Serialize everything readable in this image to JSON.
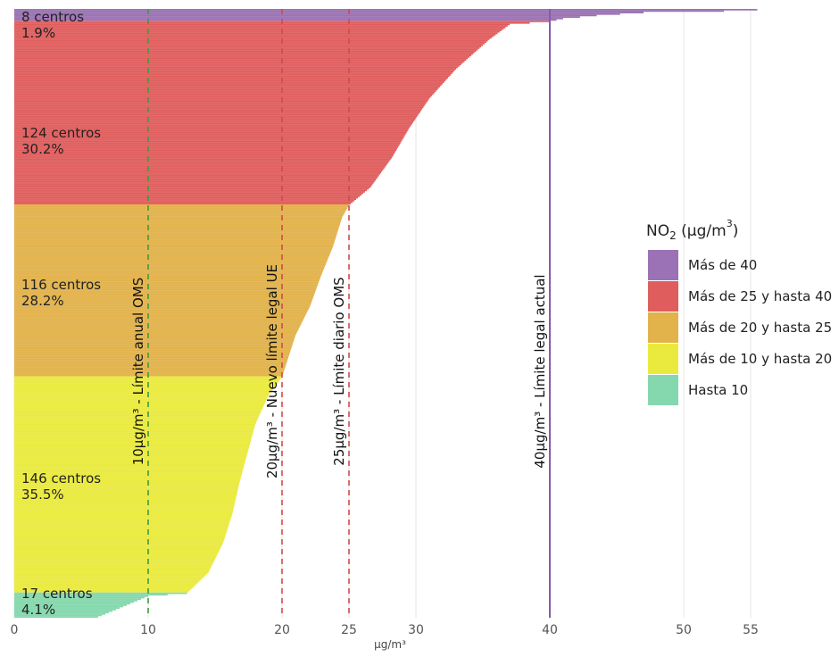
{
  "chart_data": {
    "type": "bar",
    "orientation": "horizontal",
    "title": "",
    "xlabel": "µg/m³",
    "ylabel": "",
    "xlim": [
      0,
      56
    ],
    "x_ticks": [
      0,
      10,
      20,
      25,
      30,
      40,
      50,
      55
    ],
    "grid": true,
    "legend_position": "right",
    "legend": {
      "title_prefix": "NO",
      "title_sub": "2",
      "title_suffix": " (µg/m",
      "title_sup": "3",
      "title_close": ")"
    },
    "categories": [
      {
        "legend": "Más de 40",
        "count_label": "8 centros",
        "pct_label": "1.9%",
        "n": 8,
        "color": "#9b72b5"
      },
      {
        "legend": "Más de 25 y hasta 40",
        "count_label": "124 centros",
        "pct_label": "30.2%",
        "n": 124,
        "color": "#e05d5d"
      },
      {
        "legend": "Más de 20 y hasta 25",
        "count_label": "116 centros",
        "pct_label": "28.2%",
        "n": 116,
        "color": "#e2b24b"
      },
      {
        "legend": "Más de 10 y hasta 20",
        "count_label": "146 centros",
        "pct_label": "35.5%",
        "n": 146,
        "color": "#eaea3e"
      },
      {
        "legend": "Hasta 10",
        "count_label": "17 centros",
        "pct_label": "4.1%",
        "n": 17,
        "color": "#85d8ad"
      }
    ],
    "distribution_profile": [
      [
        0,
        55.5
      ],
      [
        1,
        53.0
      ],
      [
        2,
        47.0
      ],
      [
        4,
        43.5
      ],
      [
        6,
        41.0
      ],
      [
        8,
        40.0
      ],
      [
        10,
        37.0
      ],
      [
        20,
        35.5
      ],
      [
        40,
        33.0
      ],
      [
        60,
        31.0
      ],
      [
        80,
        29.5
      ],
      [
        100,
        28.2
      ],
      [
        120,
        26.6
      ],
      [
        132,
        25.0
      ],
      [
        140,
        24.5
      ],
      [
        160,
        23.8
      ],
      [
        180,
        22.9
      ],
      [
        200,
        22.1
      ],
      [
        220,
        21.0
      ],
      [
        248,
        20.0
      ],
      [
        260,
        19.0
      ],
      [
        280,
        18.0
      ],
      [
        300,
        17.4
      ],
      [
        320,
        16.8
      ],
      [
        340,
        16.3
      ],
      [
        360,
        15.6
      ],
      [
        380,
        14.5
      ],
      [
        394,
        12.9
      ],
      [
        396,
        10.0
      ],
      [
        411,
        6.0
      ]
    ],
    "reference_lines": [
      {
        "x": 10,
        "label": "10µg/m³ - Límite anual OMS",
        "style": "dashed",
        "color": "#3f9a3f"
      },
      {
        "x": 20,
        "label": "20µg/m³ - Nuevo límite legal UE",
        "style": "dashed",
        "color": "#d04a4a"
      },
      {
        "x": 25,
        "label": "25µg/m³ - Límite diario OMS",
        "style": "dashed",
        "color": "#d04a4a"
      },
      {
        "x": 40,
        "label": "40µg/m³ - Límite legal actual",
        "style": "solid",
        "color": "#8a5aa8"
      }
    ]
  }
}
